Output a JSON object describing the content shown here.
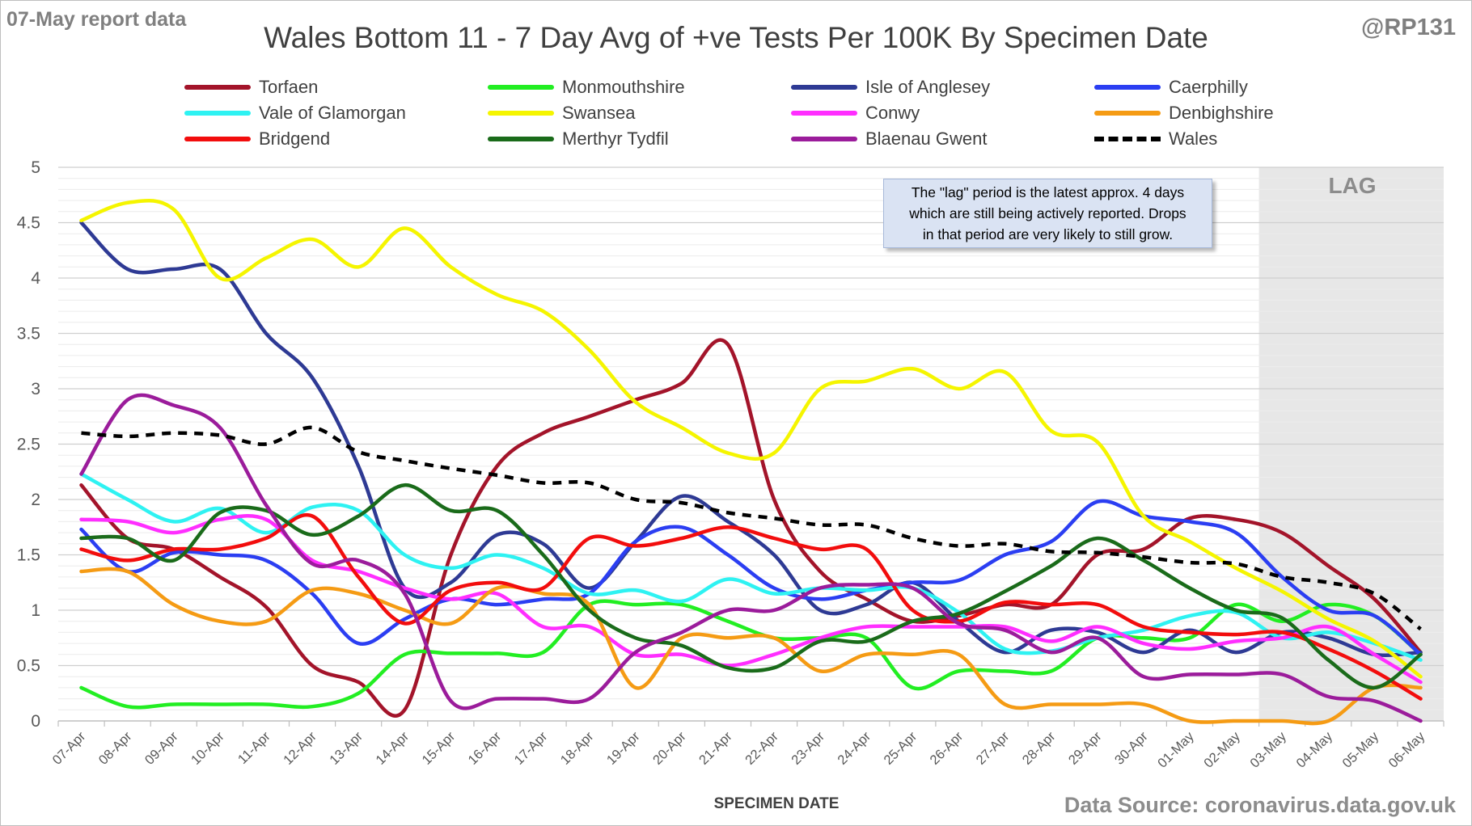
{
  "header": {
    "report_label": "07-May report data",
    "handle": "@RP131",
    "title": "Wales Bottom 11 - 7 Day Avg of +ve Tests Per 100K By Specimen Date",
    "source": "Data Source: coronavirus.data.gov.uk"
  },
  "note": {
    "lines": [
      "The \"lag\" period is the latest approx. 4 days",
      "which are still being actively reported.  Drops",
      "in that period are very likely to still grow."
    ]
  },
  "lag_label": "LAG",
  "colors": {
    "lag_shading": "#e7e7e7",
    "gridline": "#d9d9d9",
    "note_background": "#dae3f3"
  },
  "chart_data": {
    "type": "line",
    "title": "Wales Bottom 11 - 7 Day Avg of +ve Tests Per 100K By Specimen Date",
    "xlabel": "SPECIMEN DATE",
    "ylabel": "",
    "ylim": [
      0,
      5
    ],
    "yticks": [
      "0",
      "0.5",
      "1",
      "1.5",
      "2",
      "2.5",
      "3",
      "3.5",
      "4",
      "4.5",
      "5"
    ],
    "grid": "horizontal minor and major lines",
    "legend_position": "top",
    "lag_region": [
      "03-May",
      "06-May"
    ],
    "x": [
      "07-Apr",
      "08-Apr",
      "09-Apr",
      "10-Apr",
      "11-Apr",
      "12-Apr",
      "13-Apr",
      "14-Apr",
      "15-Apr",
      "16-Apr",
      "17-Apr",
      "18-Apr",
      "19-Apr",
      "20-Apr",
      "21-Apr",
      "22-Apr",
      "23-Apr",
      "24-Apr",
      "25-Apr",
      "26-Apr",
      "27-Apr",
      "28-Apr",
      "29-Apr",
      "30-Apr",
      "01-May",
      "02-May",
      "03-May",
      "04-May",
      "05-May",
      "06-May"
    ],
    "series": [
      {
        "name": "Torfaen",
        "color": "#a3142a",
        "dashed": false,
        "values": [
          2.13,
          1.65,
          1.55,
          1.3,
          1.03,
          0.5,
          0.35,
          0.1,
          1.5,
          2.3,
          2.6,
          2.75,
          2.9,
          3.05,
          3.4,
          2.0,
          1.35,
          1.1,
          0.9,
          0.95,
          1.05,
          1.05,
          1.5,
          1.55,
          1.83,
          1.82,
          1.7,
          1.4,
          1.1,
          0.62
        ]
      },
      {
        "name": "Monmouthshire",
        "color": "#22ee22",
        "dashed": false,
        "values": [
          0.3,
          0.13,
          0.15,
          0.15,
          0.15,
          0.13,
          0.25,
          0.6,
          0.61,
          0.61,
          0.62,
          1.05,
          1.05,
          1.05,
          0.9,
          0.75,
          0.75,
          0.75,
          0.3,
          0.45,
          0.45,
          0.45,
          0.75,
          0.75,
          0.75,
          1.05,
          0.9,
          1.05,
          0.95,
          0.6
        ]
      },
      {
        "name": "Isle of Anglesey",
        "color": "#2e3a94",
        "dashed": false,
        "values": [
          4.5,
          4.08,
          4.08,
          4.08,
          3.5,
          3.1,
          2.3,
          1.2,
          1.25,
          1.68,
          1.6,
          1.2,
          1.62,
          2.03,
          1.8,
          1.5,
          1.0,
          1.05,
          1.25,
          0.9,
          0.62,
          0.82,
          0.8,
          0.62,
          0.82,
          0.62,
          0.8,
          0.75,
          0.6,
          0.62
        ]
      },
      {
        "name": "Caerphilly",
        "color": "#2b3ef2",
        "dashed": false,
        "values": [
          1.73,
          1.35,
          1.52,
          1.5,
          1.45,
          1.15,
          0.7,
          0.92,
          1.1,
          1.05,
          1.1,
          1.15,
          1.62,
          1.75,
          1.5,
          1.2,
          1.1,
          1.18,
          1.25,
          1.27,
          1.5,
          1.62,
          1.98,
          1.85,
          1.8,
          1.7,
          1.3,
          1.0,
          0.95,
          0.6
        ]
      },
      {
        "name": "Vale of Glamorgan",
        "color": "#2ef2f2",
        "dashed": false,
        "values": [
          2.23,
          2.0,
          1.8,
          1.92,
          1.7,
          1.93,
          1.9,
          1.5,
          1.38,
          1.5,
          1.38,
          1.15,
          1.18,
          1.08,
          1.28,
          1.15,
          1.2,
          1.18,
          1.2,
          0.98,
          0.65,
          0.63,
          0.75,
          0.82,
          0.95,
          0.98,
          0.75,
          0.8,
          0.7,
          0.55
        ]
      },
      {
        "name": "Swansea",
        "color": "#f5f500",
        "dashed": false,
        "values": [
          4.52,
          4.68,
          4.62,
          4.0,
          4.18,
          4.35,
          4.1,
          4.45,
          4.1,
          3.85,
          3.7,
          3.35,
          2.88,
          2.65,
          2.42,
          2.42,
          3.0,
          3.07,
          3.18,
          3.0,
          3.15,
          2.62,
          2.52,
          1.85,
          1.62,
          1.38,
          1.17,
          0.92,
          0.72,
          0.4
        ]
      },
      {
        "name": "Conwy",
        "color": "#ff2eff",
        "dashed": false,
        "values": [
          1.82,
          1.8,
          1.7,
          1.82,
          1.82,
          1.45,
          1.35,
          1.2,
          1.1,
          1.15,
          0.85,
          0.85,
          0.6,
          0.6,
          0.5,
          0.6,
          0.75,
          0.85,
          0.85,
          0.85,
          0.85,
          0.72,
          0.85,
          0.7,
          0.65,
          0.72,
          0.75,
          0.85,
          0.6,
          0.35
        ]
      },
      {
        "name": "Denbighshire",
        "color": "#f59b14",
        "dashed": false,
        "values": [
          1.35,
          1.35,
          1.05,
          0.9,
          0.9,
          1.18,
          1.15,
          1.0,
          0.88,
          1.2,
          1.15,
          1.05,
          0.3,
          0.75,
          0.75,
          0.75,
          0.45,
          0.6,
          0.6,
          0.6,
          0.15,
          0.15,
          0.15,
          0.15,
          0.0,
          0.0,
          0.0,
          0.0,
          0.3,
          0.3
        ]
      },
      {
        "name": "Bridgend",
        "color": "#f20d0d",
        "dashed": false,
        "values": [
          1.55,
          1.45,
          1.55,
          1.55,
          1.65,
          1.85,
          1.3,
          0.88,
          1.18,
          1.25,
          1.2,
          1.65,
          1.58,
          1.65,
          1.75,
          1.65,
          1.55,
          1.55,
          1.0,
          0.9,
          1.07,
          1.05,
          1.05,
          0.85,
          0.8,
          0.78,
          0.8,
          0.65,
          0.45,
          0.2
        ]
      },
      {
        "name": "Merthyr Tydfil",
        "color": "#1a6b1a",
        "dashed": false,
        "values": [
          1.65,
          1.65,
          1.45,
          1.88,
          1.9,
          1.68,
          1.85,
          2.13,
          1.9,
          1.9,
          1.5,
          1.0,
          0.75,
          0.68,
          0.48,
          0.48,
          0.72,
          0.72,
          0.9,
          0.97,
          1.17,
          1.4,
          1.65,
          1.45,
          1.2,
          1.0,
          0.93,
          0.55,
          0.3,
          0.6
        ]
      },
      {
        "name": "Blaenau Gwent",
        "color": "#9b1c9b",
        "dashed": false,
        "values": [
          2.23,
          2.9,
          2.85,
          2.65,
          1.95,
          1.42,
          1.45,
          1.15,
          0.18,
          0.2,
          0.2,
          0.2,
          0.62,
          0.8,
          1.0,
          1.0,
          1.2,
          1.23,
          1.2,
          0.88,
          0.82,
          0.62,
          0.75,
          0.4,
          0.42,
          0.42,
          0.42,
          0.22,
          0.18,
          0.0
        ]
      },
      {
        "name": "Wales",
        "color": "#000000",
        "dashed": true,
        "values": [
          2.6,
          2.57,
          2.6,
          2.58,
          2.5,
          2.65,
          2.43,
          2.35,
          2.28,
          2.22,
          2.15,
          2.15,
          2.0,
          1.97,
          1.88,
          1.83,
          1.77,
          1.77,
          1.65,
          1.58,
          1.6,
          1.53,
          1.52,
          1.48,
          1.43,
          1.42,
          1.3,
          1.25,
          1.15,
          0.83
        ]
      }
    ]
  }
}
